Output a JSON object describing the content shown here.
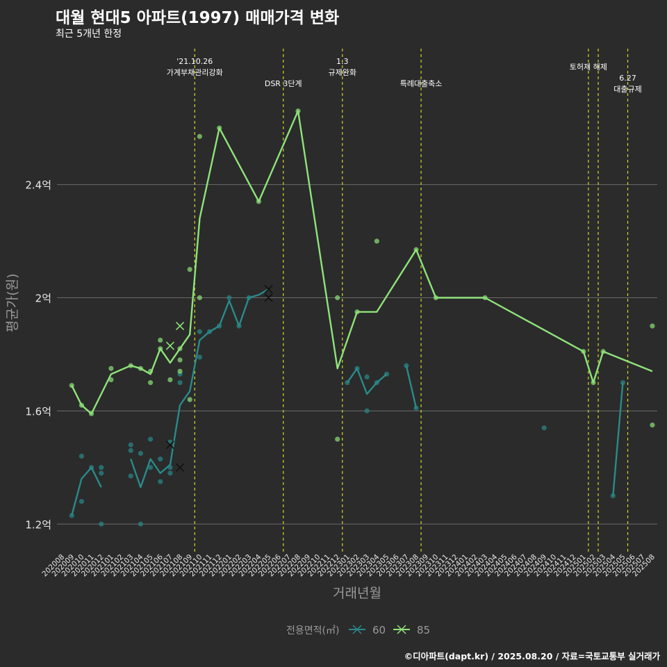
{
  "chart_data": {
    "type": "line",
    "title": "대월 현대5 아파트(1997) 매매가격 변화",
    "subtitle": "최근 5개년 한정",
    "xlabel": "거래년월",
    "ylabel": "평균가(원)",
    "caption": "©디아파트(dapt.kr) / 2025.08.20 / 자료=국토교통부 실거래가",
    "ylim": [
      1.1,
      2.9
    ],
    "y_ticks": [
      1.2,
      1.6,
      2.0,
      2.4
    ],
    "y_tick_labels": [
      "1.2억",
      "1.6억",
      "2억",
      "2.4억"
    ],
    "x_categories": [
      "202008",
      "202009",
      "202010",
      "202011",
      "202012",
      "202101",
      "202102",
      "202103",
      "202104",
      "202105",
      "202106",
      "202107",
      "202108",
      "202109",
      "202110",
      "202111",
      "202112",
      "202201",
      "202202",
      "202203",
      "202204",
      "202205",
      "202206",
      "202207",
      "202208",
      "202209",
      "202210",
      "202211",
      "202212",
      "202301",
      "202302",
      "202303",
      "202304",
      "202305",
      "202306",
      "202307",
      "202308",
      "202309",
      "202310",
      "202311",
      "202312",
      "202401",
      "202402",
      "202403",
      "202404",
      "202405",
      "202406",
      "202407",
      "202408",
      "202409",
      "202410",
      "202411",
      "202412",
      "202501",
      "202502",
      "202503",
      "202504",
      "202505",
      "202506",
      "202507",
      "202508"
    ],
    "legend": {
      "title": "전용면적(㎡)",
      "position": "bottom",
      "items": [
        "60",
        "85"
      ]
    },
    "grid": true,
    "series": [
      {
        "name": "60",
        "color": "#2a8a8a",
        "line": [
          [
            [
              "202009",
              1.23
            ],
            [
              "202010",
              1.36
            ],
            [
              "202011",
              1.4
            ],
            [
              "202012",
              1.33
            ]
          ],
          [
            [
              "202103",
              1.43
            ],
            [
              "202104",
              1.33
            ],
            [
              "202105",
              1.43
            ],
            [
              "202106",
              1.38
            ],
            [
              "202107",
              1.41
            ],
            [
              "202108",
              1.62
            ],
            [
              "202109",
              1.67
            ],
            [
              "202110",
              1.85
            ],
            [
              "202111",
              1.88
            ],
            [
              "202112",
              1.9
            ],
            [
              "202201",
              1.99
            ],
            [
              "202202",
              1.9
            ],
            [
              "202203",
              2.0
            ],
            [
              "202204",
              2.01
            ],
            [
              "202205",
              2.03
            ]
          ],
          [
            [
              "202301",
              1.7
            ],
            [
              "202302",
              1.75
            ],
            [
              "202303",
              1.66
            ],
            [
              "202304",
              1.7
            ],
            [
              "202305",
              1.73
            ]
          ],
          [
            [
              "202307",
              1.76
            ],
            [
              "202308",
              1.61
            ]
          ],
          [
            [
              "202504",
              1.3
            ],
            [
              "202505",
              1.7
            ]
          ]
        ],
        "points": [
          [
            "202009",
            1.23
          ],
          [
            "202010",
            1.44
          ],
          [
            "202010",
            1.28
          ],
          [
            "202011",
            1.4
          ],
          [
            "202012",
            1.4
          ],
          [
            "202012",
            1.38
          ],
          [
            "202012",
            1.2
          ],
          [
            "202103",
            1.48
          ],
          [
            "202103",
            1.46
          ],
          [
            "202103",
            1.37
          ],
          [
            "202104",
            1.45
          ],
          [
            "202104",
            1.2
          ],
          [
            "202105",
            1.5
          ],
          [
            "202105",
            1.4
          ],
          [
            "202106",
            1.43
          ],
          [
            "202106",
            1.35
          ],
          [
            "202107",
            1.49
          ],
          [
            "202107",
            1.4
          ],
          [
            "202107",
            1.38
          ],
          [
            "202108",
            1.73
          ],
          [
            "202108",
            1.7
          ],
          [
            "202110",
            1.79
          ],
          [
            "202110",
            1.88
          ],
          [
            "202111",
            1.88
          ],
          [
            "202112",
            1.9
          ],
          [
            "202201",
            2.0
          ],
          [
            "202202",
            1.9
          ],
          [
            "202203",
            2.0
          ],
          [
            "202301",
            1.7
          ],
          [
            "202302",
            1.75
          ],
          [
            "202303",
            1.72
          ],
          [
            "202303",
            1.6
          ],
          [
            "202304",
            1.7
          ],
          [
            "202305",
            1.73
          ],
          [
            "202307",
            1.76
          ],
          [
            "202308",
            1.61
          ],
          [
            "202409",
            1.54
          ],
          [
            "202504",
            1.3
          ],
          [
            "202505",
            1.7
          ]
        ],
        "cross_points": [
          [
            "202107",
            1.48
          ],
          [
            "202108",
            1.4
          ],
          [
            "202205",
            2.03
          ],
          [
            "202205",
            2.0
          ]
        ]
      },
      {
        "name": "85",
        "color": "#8fe37a",
        "line": [
          [
            [
              "202009",
              1.69
            ],
            [
              "202010",
              1.62
            ],
            [
              "202011",
              1.59
            ],
            [
              "202101",
              1.73
            ],
            [
              "202103",
              1.76
            ],
            [
              "202104",
              1.75
            ],
            [
              "202105",
              1.73
            ],
            [
              "202106",
              1.82
            ],
            [
              "202107",
              1.77
            ],
            [
              "202108",
              1.82
            ],
            [
              "202109",
              1.87
            ],
            [
              "202110",
              2.28
            ],
            [
              "202112",
              2.6
            ],
            [
              "202204",
              2.34
            ],
            [
              "202208",
              2.66
            ],
            [
              "202212",
              1.75
            ],
            [
              "202302",
              1.95
            ],
            [
              "202304",
              1.95
            ],
            [
              "202308",
              2.17
            ],
            [
              "202310",
              2.0
            ],
            [
              "202403",
              2.0
            ],
            [
              "202501",
              1.81
            ],
            [
              "202502",
              1.7
            ],
            [
              "202503",
              1.81
            ],
            [
              "202508",
              1.74
            ]
          ]
        ],
        "points": [
          [
            "202009",
            1.69
          ],
          [
            "202010",
            1.62
          ],
          [
            "202011",
            1.59
          ],
          [
            "202101",
            1.75
          ],
          [
            "202101",
            1.71
          ],
          [
            "202103",
            1.76
          ],
          [
            "202104",
            1.75
          ],
          [
            "202105",
            1.74
          ],
          [
            "202105",
            1.7
          ],
          [
            "202106",
            1.85
          ],
          [
            "202106",
            1.82
          ],
          [
            "202107",
            1.71
          ],
          [
            "202108",
            1.74
          ],
          [
            "202108",
            1.82
          ],
          [
            "202108",
            1.78
          ],
          [
            "202109",
            2.1
          ],
          [
            "202109",
            1.64
          ],
          [
            "202110",
            2.57
          ],
          [
            "202110",
            2.0
          ],
          [
            "202112",
            2.6
          ],
          [
            "202204",
            2.34
          ],
          [
            "202208",
            2.66
          ],
          [
            "202212",
            2.0
          ],
          [
            "202212",
            1.5
          ],
          [
            "202302",
            1.95
          ],
          [
            "202304",
            2.2
          ],
          [
            "202308",
            2.17
          ],
          [
            "202310",
            2.0
          ],
          [
            "202403",
            2.0
          ],
          [
            "202501",
            1.81
          ],
          [
            "202502",
            1.7
          ],
          [
            "202503",
            1.81
          ],
          [
            "202508",
            1.9
          ],
          [
            "202508",
            1.55
          ]
        ],
        "cross_points": [
          [
            "202107",
            1.83
          ],
          [
            "202108",
            1.9
          ]
        ]
      }
    ],
    "events": [
      {
        "month": "202110",
        "lines": [
          "'21.10.26",
          "가계부채관리강화"
        ]
      },
      {
        "month": "202207",
        "lines": [
          "DSR 3단계"
        ]
      },
      {
        "month": "202301",
        "lines": [
          "1.3",
          "규제완화"
        ]
      },
      {
        "month": "202309",
        "lines": [
          "특례대출축소"
        ]
      },
      {
        "month": "202502",
        "lines": [
          "토허제 해제"
        ]
      },
      {
        "month": "202503",
        "lines": []
      },
      {
        "month": "202506",
        "lines": [
          "6.27",
          "대출규제"
        ]
      }
    ]
  }
}
